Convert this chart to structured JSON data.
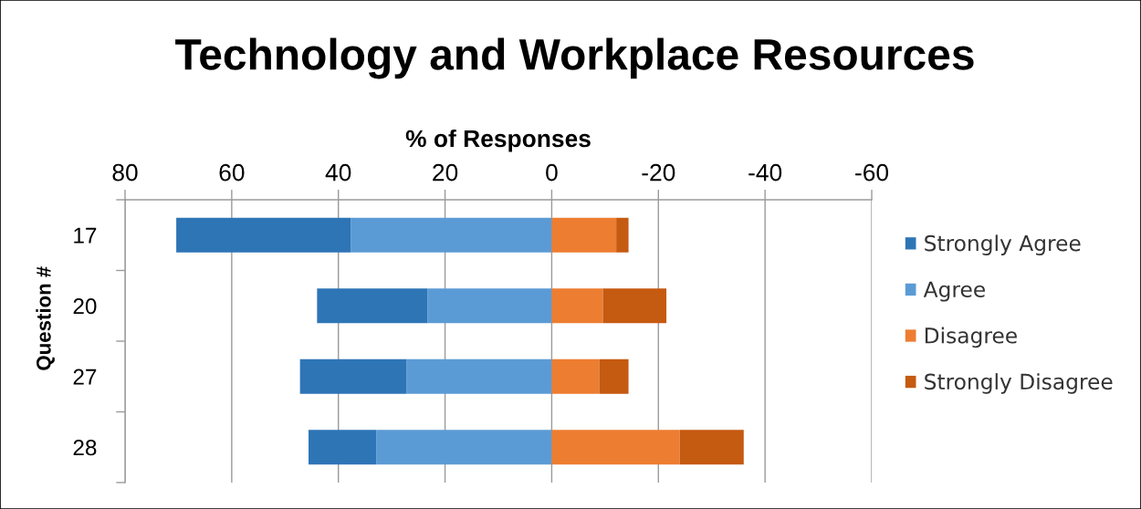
{
  "chart_data": {
    "type": "bar",
    "orientation": "horizontal",
    "stacked": true,
    "title": "Technology and Workplace Resources",
    "xlabel": "% of Responses",
    "ylabel": "Question #",
    "categories": [
      "17",
      "20",
      "27",
      "28"
    ],
    "series": [
      {
        "name": "Agree",
        "color": "#5b9bd5",
        "values": [
          37.7,
          23.3,
          27.2,
          32.9
        ]
      },
      {
        "name": "Strongly Agree",
        "color": "#2e75b6",
        "values": [
          32.7,
          20.7,
          20.0,
          12.7
        ]
      },
      {
        "name": "Disagree",
        "color": "#ed7d31",
        "values": [
          -12.1,
          -9.6,
          -8.9,
          -24.0
        ]
      },
      {
        "name": "Strongly Disagree",
        "color": "#c55a11",
        "values": [
          -2.3,
          -11.9,
          -5.5,
          -12.0
        ]
      }
    ],
    "xlim": [
      80,
      -60
    ],
    "xticks": [
      80,
      60,
      40,
      20,
      0,
      -20,
      -40,
      -60
    ],
    "grid": "x",
    "legend": "right"
  }
}
